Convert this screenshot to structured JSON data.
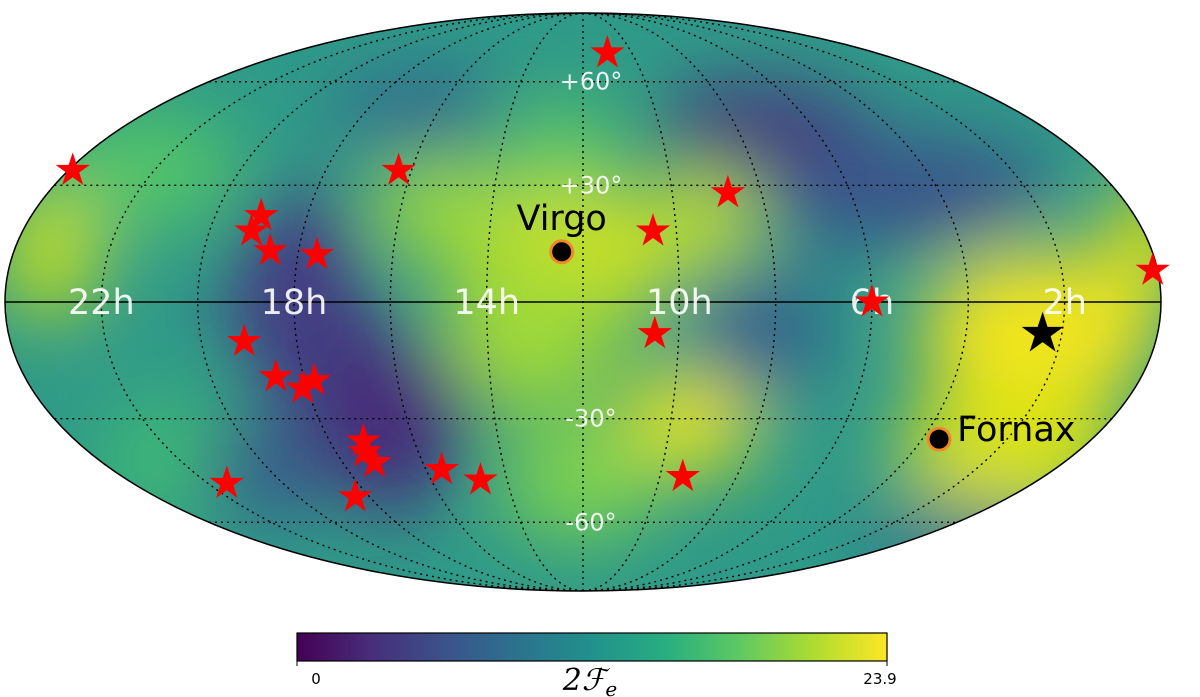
{
  "chart_data": {
    "type": "heatmap",
    "projection": "mollweide",
    "colormap": "viridis",
    "colorbar": {
      "label": "2ℱe",
      "label_main": "2ℱ",
      "label_sub": "e",
      "min": 0,
      "max": 23.9,
      "min_label": "0",
      "max_label": "23.9"
    },
    "ra_labels": [
      "22h",
      "18h",
      "14h",
      "10h",
      "6h",
      "2h"
    ],
    "ra_label_values_h": [
      22,
      18,
      14,
      10,
      6,
      2
    ],
    "dec_labels": [
      "+60°",
      "+30°",
      "-30°",
      "-60°"
    ],
    "dec_label_values_deg": [
      60,
      30,
      -30,
      -60
    ],
    "grid": true,
    "clusters": [
      {
        "name": "Virgo",
        "ra_h": 12.45,
        "dec_deg": 12.7
      },
      {
        "name": "Fornax",
        "ra_h": 3.6,
        "dec_deg": -35.5
      }
    ],
    "best_fit": {
      "ra_h": 2.4,
      "dec_deg": -8
    },
    "pulsars": [
      {
        "ra_h": 23.9,
        "dec_deg": 34
      },
      {
        "ra_h": 16.3,
        "dec_deg": 34
      },
      {
        "ra_h": 19.0,
        "dec_deg": 22
      },
      {
        "ra_h": 19.1,
        "dec_deg": 18
      },
      {
        "ra_h": 18.6,
        "dec_deg": 13
      },
      {
        "ra_h": 17.6,
        "dec_deg": 12
      },
      {
        "ra_h": 19.1,
        "dec_deg": -10
      },
      {
        "ra_h": 18.6,
        "dec_deg": -19
      },
      {
        "ra_h": 17.8,
        "dec_deg": -20
      },
      {
        "ra_h": 18.1,
        "dec_deg": -22
      },
      {
        "ra_h": 17.2,
        "dec_deg": -36
      },
      {
        "ra_h": 17.3,
        "dec_deg": -39
      },
      {
        "ra_h": 17.2,
        "dec_deg": -42
      },
      {
        "ra_h": 21.5,
        "dec_deg": -48
      },
      {
        "ra_h": 18.4,
        "dec_deg": -52
      },
      {
        "ra_h": 15.6,
        "dec_deg": -44
      },
      {
        "ra_h": 14.7,
        "dec_deg": -47
      },
      {
        "ra_h": 11.0,
        "dec_deg": 70
      },
      {
        "ra_h": 10.5,
        "dec_deg": 18
      },
      {
        "ra_h": 10.5,
        "dec_deg": -8
      },
      {
        "ra_h": 8.75,
        "dec_deg": 28
      },
      {
        "ra_h": 9.4,
        "dec_deg": -46
      },
      {
        "ra_h": 6.0,
        "dec_deg": 0
      },
      {
        "ra_h": 0.1,
        "dec_deg": 8
      }
    ]
  }
}
